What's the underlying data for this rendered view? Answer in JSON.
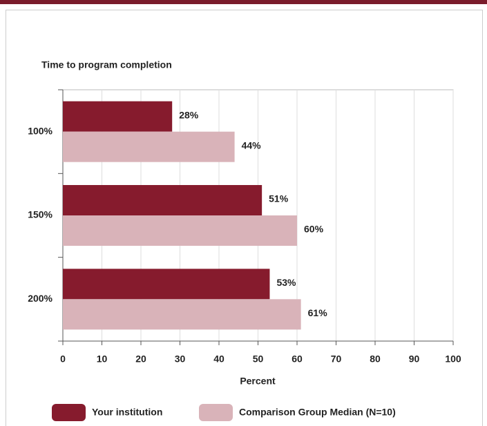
{
  "chart_data": {
    "type": "barh",
    "title": "Time to program completion",
    "xlabel": "Percent",
    "categories": [
      "100%",
      "150%",
      "200%"
    ],
    "series": [
      {
        "name": "Your institution",
        "color": "#861b2d",
        "values": [
          28,
          51,
          53
        ],
        "value_labels": [
          "28%",
          "51%",
          "53%"
        ]
      },
      {
        "name": "Comparison Group Median (N=10)",
        "color": "#d9b3b9",
        "values": [
          44,
          60,
          61
        ],
        "value_labels": [
          "44%",
          "60%",
          "61%"
        ]
      }
    ],
    "xlim": [
      0,
      100
    ],
    "xticks": [
      0,
      10,
      20,
      30,
      40,
      50,
      60,
      70,
      80,
      90,
      100
    ],
    "grid": true
  }
}
